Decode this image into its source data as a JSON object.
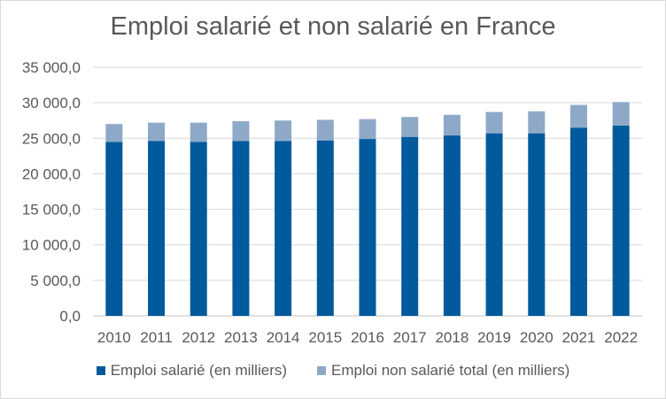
{
  "chart_data": {
    "type": "bar",
    "stacked": true,
    "title": "Emploi salarié et non salarié en France",
    "xlabel": "",
    "ylabel": "",
    "ylim": [
      0,
      35000
    ],
    "yticks": [
      "0,0",
      "5 000,0",
      "10 000,0",
      "15 000,0",
      "20 000,0",
      "25 000,0",
      "30 000,0",
      "35 000,0"
    ],
    "grid": true,
    "legend_position": "bottom",
    "categories": [
      "2010",
      "2011",
      "2012",
      "2013",
      "2014",
      "2015",
      "2016",
      "2017",
      "2018",
      "2019",
      "2020",
      "2021",
      "2022"
    ],
    "series": [
      {
        "name": "Emploi salarié (en milliers)",
        "color": "#005a9b",
        "values": [
          24500,
          24600,
          24500,
          24600,
          24600,
          24700,
          24900,
          25200,
          25400,
          25700,
          25700,
          26500,
          26800
        ]
      },
      {
        "name": "Emploi non salarié total (en milliers)",
        "color": "#8ea9c8",
        "values": [
          2500,
          2600,
          2700,
          2800,
          2900,
          2900,
          2800,
          2800,
          2900,
          3000,
          3100,
          3200,
          3300
        ]
      }
    ]
  }
}
